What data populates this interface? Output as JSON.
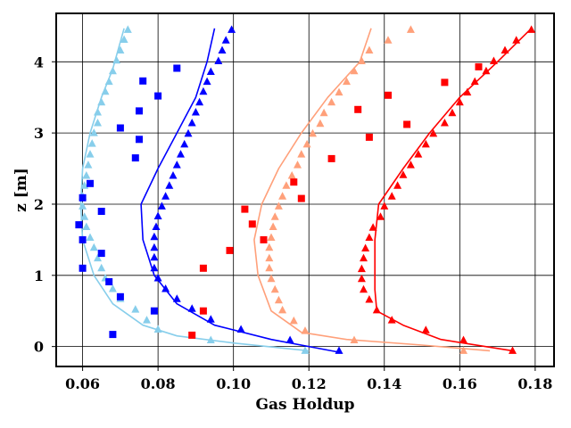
{
  "chart_data": {
    "type": "scatter+line",
    "title": "",
    "xlabel": "Gas Holdup",
    "ylabel": "z [m]",
    "xlim": [
      0.053,
      0.185
    ],
    "ylim": [
      -0.28,
      4.68
    ],
    "xticks": [
      0.06,
      0.08,
      0.1,
      0.12,
      0.14,
      0.16,
      0.18
    ],
    "xtick_labels": [
      "0.06",
      "0.08",
      "0.10",
      "0.12",
      "0.14",
      "0.16",
      "0.18"
    ],
    "yticks": [
      0,
      1,
      2,
      3,
      4
    ],
    "ytick_labels": [
      "0",
      "1",
      "2",
      "3",
      "4"
    ],
    "grid": true,
    "legend": "none",
    "series": [
      {
        "name": "light-blue",
        "color": "#87ceeb",
        "line": [
          [
            0.12,
            -0.06
          ],
          [
            0.1,
            0.05
          ],
          [
            0.085,
            0.15
          ],
          [
            0.076,
            0.3
          ],
          [
            0.068,
            0.6
          ],
          [
            0.063,
            1.0
          ],
          [
            0.06,
            1.5
          ],
          [
            0.0595,
            2.0
          ],
          [
            0.06,
            2.5
          ],
          [
            0.062,
            3.0
          ],
          [
            0.065,
            3.5
          ],
          [
            0.068,
            3.9
          ],
          [
            0.071,
            4.47
          ]
        ],
        "triangles": [
          [
            0.119,
            -0.06
          ],
          [
            0.094,
            0.09
          ],
          [
            0.08,
            0.24
          ],
          [
            0.077,
            0.37
          ],
          [
            0.074,
            0.52
          ],
          [
            0.07,
            0.67
          ],
          [
            0.068,
            0.81
          ],
          [
            0.066,
            0.96
          ],
          [
            0.065,
            1.1
          ],
          [
            0.064,
            1.24
          ],
          [
            0.063,
            1.39
          ],
          [
            0.062,
            1.53
          ],
          [
            0.061,
            1.68
          ],
          [
            0.0605,
            1.82
          ],
          [
            0.06,
            1.97
          ],
          [
            0.06,
            2.11
          ],
          [
            0.0605,
            2.26
          ],
          [
            0.061,
            2.4
          ],
          [
            0.0615,
            2.55
          ],
          [
            0.062,
            2.7
          ],
          [
            0.0625,
            2.85
          ],
          [
            0.063,
            3.0
          ],
          [
            0.064,
            3.14
          ],
          [
            0.064,
            3.29
          ],
          [
            0.065,
            3.43
          ],
          [
            0.066,
            3.58
          ],
          [
            0.067,
            3.72
          ],
          [
            0.068,
            3.87
          ],
          [
            0.069,
            4.02
          ],
          [
            0.07,
            4.16
          ],
          [
            0.071,
            4.31
          ],
          [
            0.072,
            4.45
          ]
        ],
        "squares": []
      },
      {
        "name": "blue",
        "color": "#0000ff",
        "line": [
          [
            0.128,
            -0.08
          ],
          [
            0.11,
            0.1
          ],
          [
            0.095,
            0.3
          ],
          [
            0.085,
            0.6
          ],
          [
            0.079,
            1.0
          ],
          [
            0.076,
            1.5
          ],
          [
            0.0755,
            2.0
          ],
          [
            0.08,
            2.5
          ],
          [
            0.085,
            3.0
          ],
          [
            0.09,
            3.5
          ],
          [
            0.093,
            4.0
          ],
          [
            0.095,
            4.47
          ]
        ],
        "triangles": [
          [
            0.128,
            -0.06
          ],
          [
            0.115,
            0.09
          ],
          [
            0.102,
            0.24
          ],
          [
            0.094,
            0.38
          ],
          [
            0.089,
            0.53
          ],
          [
            0.085,
            0.67
          ],
          [
            0.082,
            0.81
          ],
          [
            0.08,
            0.96
          ],
          [
            0.079,
            1.1
          ],
          [
            0.079,
            1.25
          ],
          [
            0.079,
            1.39
          ],
          [
            0.079,
            1.54
          ],
          [
            0.0795,
            1.68
          ],
          [
            0.08,
            1.83
          ],
          [
            0.081,
            1.97
          ],
          [
            0.082,
            2.11
          ],
          [
            0.083,
            2.26
          ],
          [
            0.084,
            2.4
          ],
          [
            0.085,
            2.55
          ],
          [
            0.086,
            2.7
          ],
          [
            0.087,
            2.84
          ],
          [
            0.088,
            2.99
          ],
          [
            0.089,
            3.14
          ],
          [
            0.09,
            3.29
          ],
          [
            0.091,
            3.43
          ],
          [
            0.092,
            3.58
          ],
          [
            0.093,
            3.72
          ],
          [
            0.094,
            3.86
          ],
          [
            0.096,
            4.01
          ],
          [
            0.097,
            4.16
          ],
          [
            0.098,
            4.3
          ],
          [
            0.0995,
            4.45
          ]
        ],
        "squares": [
          [
            0.068,
            0.17
          ],
          [
            0.079,
            0.5
          ],
          [
            0.07,
            0.7
          ],
          [
            0.067,
            0.91
          ],
          [
            0.06,
            1.1
          ],
          [
            0.065,
            1.31
          ],
          [
            0.06,
            1.5
          ],
          [
            0.059,
            1.71
          ],
          [
            0.065,
            1.9
          ],
          [
            0.06,
            2.09
          ],
          [
            0.062,
            2.29
          ],
          [
            0.074,
            2.65
          ],
          [
            0.075,
            2.91
          ],
          [
            0.07,
            3.07
          ],
          [
            0.075,
            3.31
          ],
          [
            0.08,
            3.52
          ],
          [
            0.076,
            3.73
          ],
          [
            0.085,
            3.91
          ]
        ]
      },
      {
        "name": "light-salmon",
        "color": "#ffa07a",
        "line": [
          [
            0.168,
            -0.06
          ],
          [
            0.15,
            0.02
          ],
          [
            0.13,
            0.1
          ],
          [
            0.118,
            0.2
          ],
          [
            0.11,
            0.5
          ],
          [
            0.1065,
            1.0
          ],
          [
            0.1055,
            1.5
          ],
          [
            0.1075,
            2.0
          ],
          [
            0.112,
            2.5
          ],
          [
            0.118,
            3.0
          ],
          [
            0.125,
            3.5
          ],
          [
            0.1335,
            4.0
          ],
          [
            0.1365,
            4.47
          ]
        ],
        "triangles": [
          [
            0.161,
            -0.06
          ],
          [
            0.132,
            0.09
          ],
          [
            0.119,
            0.22
          ],
          [
            0.116,
            0.36
          ],
          [
            0.113,
            0.51
          ],
          [
            0.112,
            0.65
          ],
          [
            0.111,
            0.8
          ],
          [
            0.11,
            0.95
          ],
          [
            0.1095,
            1.1
          ],
          [
            0.1095,
            1.24
          ],
          [
            0.1095,
            1.39
          ],
          [
            0.11,
            1.53
          ],
          [
            0.1105,
            1.68
          ],
          [
            0.111,
            1.82
          ],
          [
            0.112,
            1.97
          ],
          [
            0.113,
            2.11
          ],
          [
            0.114,
            2.26
          ],
          [
            0.1155,
            2.4
          ],
          [
            0.117,
            2.55
          ],
          [
            0.118,
            2.7
          ],
          [
            0.1195,
            2.84
          ],
          [
            0.121,
            2.99
          ],
          [
            0.123,
            3.13
          ],
          [
            0.124,
            3.28
          ],
          [
            0.126,
            3.43
          ],
          [
            0.128,
            3.57
          ],
          [
            0.13,
            3.72
          ],
          [
            0.132,
            3.87
          ],
          [
            0.134,
            4.01
          ],
          [
            0.136,
            4.16
          ],
          [
            0.141,
            4.3
          ],
          [
            0.147,
            4.45
          ]
        ],
        "squares": []
      },
      {
        "name": "red",
        "color": "#ff0000",
        "line": [
          [
            0.174,
            -0.06
          ],
          [
            0.155,
            0.1
          ],
          [
            0.145,
            0.3
          ],
          [
            0.138,
            0.5
          ],
          [
            0.1375,
            0.8
          ],
          [
            0.1375,
            1.0
          ],
          [
            0.1375,
            1.5
          ],
          [
            0.1385,
            2.0
          ],
          [
            0.145,
            2.5
          ],
          [
            0.152,
            3.0
          ],
          [
            0.16,
            3.5
          ],
          [
            0.17,
            4.0
          ],
          [
            0.179,
            4.47
          ]
        ],
        "triangles": [
          [
            0.174,
            -0.06
          ],
          [
            0.161,
            0.09
          ],
          [
            0.151,
            0.23
          ],
          [
            0.142,
            0.37
          ],
          [
            0.138,
            0.51
          ],
          [
            0.136,
            0.66
          ],
          [
            0.1345,
            0.8
          ],
          [
            0.134,
            0.95
          ],
          [
            0.134,
            1.09
          ],
          [
            0.1345,
            1.24
          ],
          [
            0.135,
            1.38
          ],
          [
            0.136,
            1.53
          ],
          [
            0.137,
            1.67
          ],
          [
            0.139,
            1.82
          ],
          [
            0.14,
            1.97
          ],
          [
            0.142,
            2.11
          ],
          [
            0.1435,
            2.26
          ],
          [
            0.145,
            2.41
          ],
          [
            0.147,
            2.55
          ],
          [
            0.149,
            2.7
          ],
          [
            0.151,
            2.84
          ],
          [
            0.153,
            2.99
          ],
          [
            0.156,
            3.14
          ],
          [
            0.158,
            3.28
          ],
          [
            0.16,
            3.43
          ],
          [
            0.162,
            3.57
          ],
          [
            0.164,
            3.72
          ],
          [
            0.167,
            3.87
          ],
          [
            0.169,
            4.01
          ],
          [
            0.172,
            4.16
          ],
          [
            0.175,
            4.3
          ],
          [
            0.179,
            4.45
          ]
        ],
        "squares": [
          [
            0.089,
            0.16
          ],
          [
            0.092,
            0.5
          ],
          [
            0.092,
            1.1
          ],
          [
            0.099,
            1.35
          ],
          [
            0.108,
            1.5
          ],
          [
            0.105,
            1.72
          ],
          [
            0.103,
            1.93
          ],
          [
            0.118,
            2.08
          ],
          [
            0.116,
            2.31
          ],
          [
            0.126,
            2.64
          ],
          [
            0.136,
            2.94
          ],
          [
            0.146,
            3.12
          ],
          [
            0.133,
            3.33
          ],
          [
            0.141,
            3.53
          ],
          [
            0.156,
            3.71
          ],
          [
            0.165,
            3.93
          ]
        ]
      }
    ]
  }
}
